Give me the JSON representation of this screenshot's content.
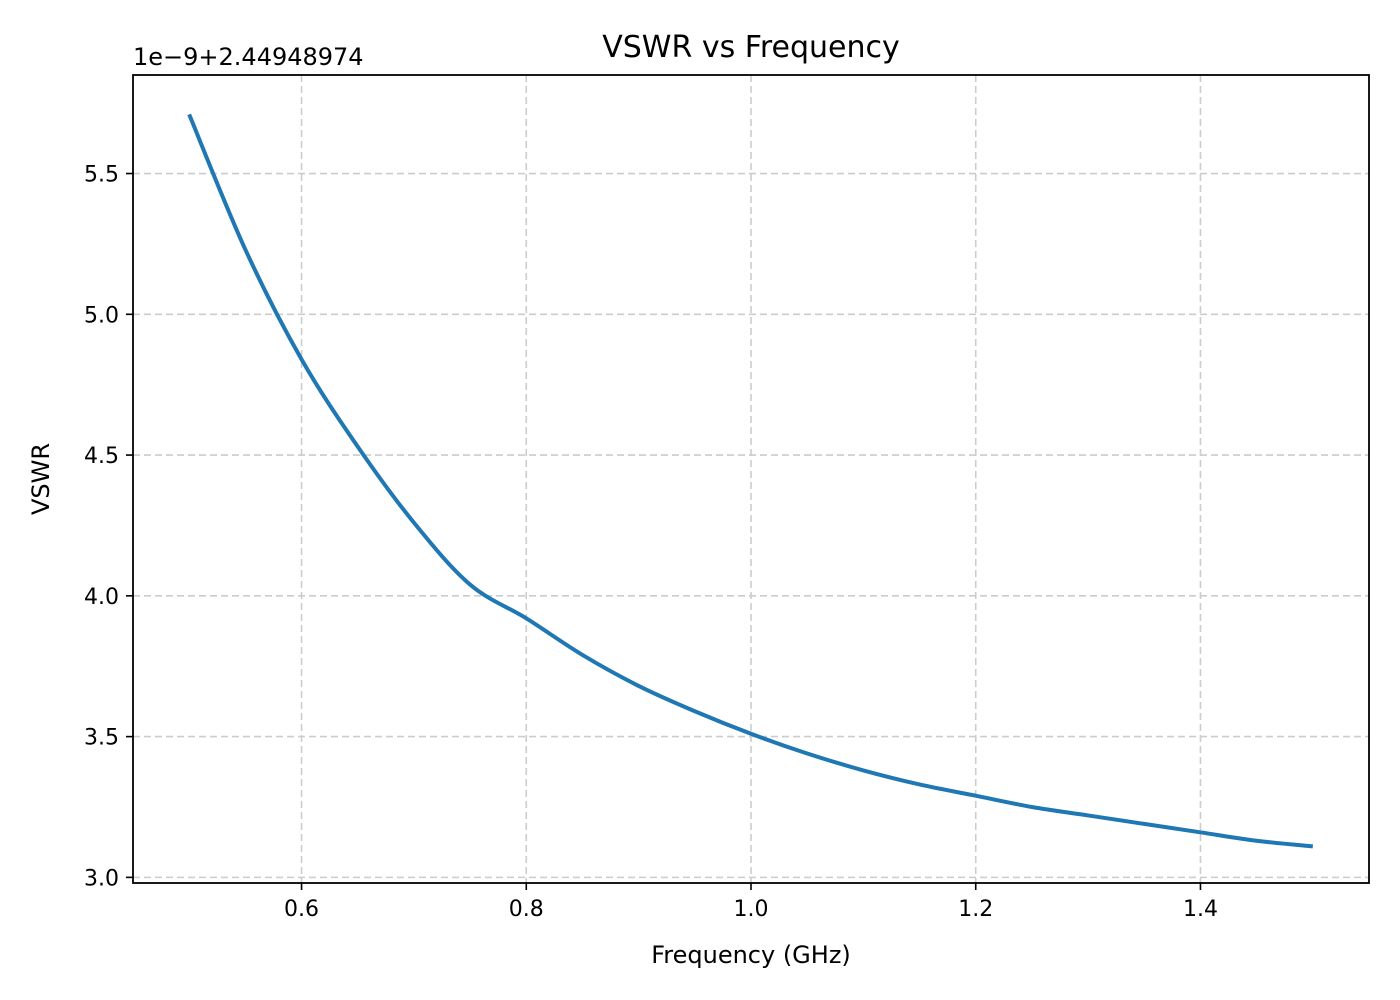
{
  "chart_data": {
    "type": "line",
    "title": "VSWR vs Frequency",
    "xlabel": "Frequency (GHz)",
    "ylabel": "VSWR",
    "y_offset_label": "1e−9+2.44948974",
    "xlim": [
      0.45,
      1.55
    ],
    "ylim": [
      2.98,
      5.85
    ],
    "x_ticks": [
      0.6,
      0.8,
      1.0,
      1.2,
      1.4
    ],
    "x_tick_labels": [
      "0.6",
      "0.8",
      "1.0",
      "1.2",
      "1.4"
    ],
    "y_ticks": [
      3.0,
      3.5,
      4.0,
      4.5,
      5.0,
      5.5
    ],
    "y_tick_labels": [
      "3.0",
      "3.5",
      "4.0",
      "4.5",
      "5.0",
      "5.5"
    ],
    "grid": true,
    "series": [
      {
        "color": "#1f77b4",
        "x": [
          0.5,
          0.55,
          0.6,
          0.65,
          0.7,
          0.75,
          0.8,
          0.85,
          0.9,
          0.95,
          1.0,
          1.05,
          1.1,
          1.15,
          1.2,
          1.25,
          1.3,
          1.35,
          1.4,
          1.45,
          1.5
        ],
        "y": [
          5.71,
          5.23,
          4.84,
          4.53,
          4.26,
          4.04,
          3.92,
          3.79,
          3.68,
          3.59,
          3.51,
          3.44,
          3.38,
          3.33,
          3.29,
          3.25,
          3.22,
          3.19,
          3.16,
          3.13,
          3.11
        ]
      }
    ]
  }
}
